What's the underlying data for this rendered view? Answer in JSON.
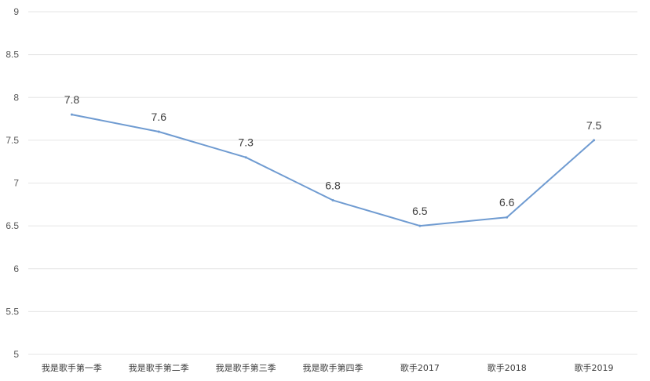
{
  "chart_data": {
    "type": "line",
    "title": "",
    "xlabel": "",
    "ylabel": "",
    "categories": [
      "我是歌手第一季",
      "我是歌手第二季",
      "我是歌手第三季",
      "我是歌手第四季",
      "歌手2017",
      "歌手2018",
      "歌手2019"
    ],
    "series": [
      {
        "values": [
          7.8,
          7.6,
          7.3,
          6.8,
          6.5,
          6.6,
          7.5
        ],
        "color": "#6f9bd1"
      }
    ],
    "ylim": [
      5,
      9
    ],
    "yticks": [
      "5",
      "5.5",
      "6",
      "6.5",
      "7",
      "7.5",
      "8",
      "8.5",
      "9"
    ],
    "grid": true,
    "legend": "none",
    "data_labels": [
      "7.8",
      "7.6",
      "7.3",
      "6.8",
      "6.5",
      "6.6",
      "7.5"
    ]
  }
}
